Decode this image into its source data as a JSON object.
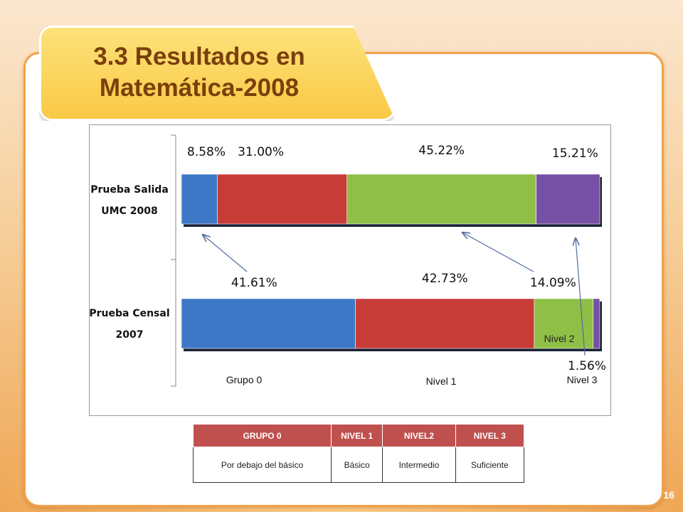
{
  "slide": {
    "title_line1": "3.3 Resultados en",
    "title_line2": "Matemática-2008",
    "page_number": "16"
  },
  "colors": {
    "grupo0": "#3d78c6",
    "nivel1": "#c83c38",
    "nivel2": "#8fbf46",
    "nivel3": "#7550a4",
    "title_text": "#7a3f0c",
    "table_header": "#c0504d"
  },
  "chart_data": {
    "type": "bar",
    "orientation": "horizontal-stacked",
    "title": "",
    "categories": [
      "Prueba Salida UMC 2008",
      "Prueba Censal 2007"
    ],
    "category_lines": [
      [
        "Prueba Salida",
        "UMC 2008"
      ],
      [
        "Prueba Censal",
        "2007"
      ]
    ],
    "series": [
      {
        "name": "Grupo 0",
        "values": [
          8.58,
          41.61
        ],
        "labels": [
          "8.58%",
          "41.61%"
        ]
      },
      {
        "name": "Nivel 1",
        "values": [
          31.0,
          42.73
        ],
        "labels": [
          "31.00%",
          "42.73%"
        ]
      },
      {
        "name": "Nivel 2",
        "values": [
          45.22,
          14.09
        ],
        "labels": [
          "45.22%",
          "14.09%"
        ]
      },
      {
        "name": "Nivel 3",
        "values": [
          15.21,
          1.56
        ],
        "labels": [
          "15.21%",
          "1.56%"
        ]
      }
    ],
    "xlim": [
      0,
      100
    ],
    "grid": false,
    "legend_position": "bottom"
  },
  "levels_table": {
    "headers": [
      "GRUPO 0",
      "NIVEL 1",
      "NIVEL2",
      "NIVEL 3"
    ],
    "row": [
      "Por debajo del básico",
      "Básico",
      "Intermedio",
      "Suficiente"
    ]
  }
}
